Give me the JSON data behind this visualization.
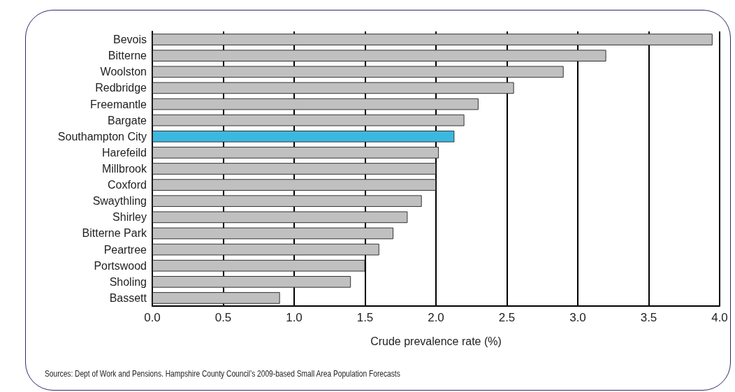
{
  "chart_data": {
    "type": "bar",
    "orientation": "horizontal",
    "categories": [
      "Bevois",
      "Bitterne",
      "Woolston",
      "Redbridge",
      "Freemantle",
      "Bargate",
      "Southampton City",
      "Harefeild",
      "Millbrook",
      "Coxford",
      "Swaythling",
      "Shirley",
      "Bitterne Park",
      "Peartree",
      "Portswood",
      "Sholing",
      "Bassett"
    ],
    "values": [
      3.95,
      3.2,
      2.9,
      2.55,
      2.3,
      2.2,
      2.13,
      2.02,
      2.0,
      2.0,
      1.9,
      1.8,
      1.7,
      1.6,
      1.5,
      1.4,
      0.9
    ],
    "colors": [
      "#c0c0c0",
      "#c0c0c0",
      "#c0c0c0",
      "#c0c0c0",
      "#c0c0c0",
      "#c0c0c0",
      "#3bb8e0",
      "#c0c0c0",
      "#c0c0c0",
      "#c0c0c0",
      "#c0c0c0",
      "#c0c0c0",
      "#c0c0c0",
      "#c0c0c0",
      "#c0c0c0",
      "#c0c0c0",
      "#c0c0c0"
    ],
    "xlim": [
      0,
      4
    ],
    "xticks": [
      {
        "value": 0,
        "label": "0.0"
      },
      {
        "value": 0.5,
        "label": "0.5"
      },
      {
        "value": 1,
        "label": "1.0"
      },
      {
        "value": 1.5,
        "label": "1.5"
      },
      {
        "value": 2,
        "label": "2.0"
      },
      {
        "value": 2.5,
        "label": "2.5"
      },
      {
        "value": 3,
        "label": "3.0"
      },
      {
        "value": 3.5,
        "label": "3.5"
      },
      {
        "value": 4,
        "label": "4.0"
      }
    ],
    "xlabel": "Crude prevalence rate (%)",
    "grid": "x",
    "annotations": [
      "Sources: Dept of Work and Pensions. Hampshire County Council’s 2009-based Small Area Population Forecasts"
    ]
  }
}
